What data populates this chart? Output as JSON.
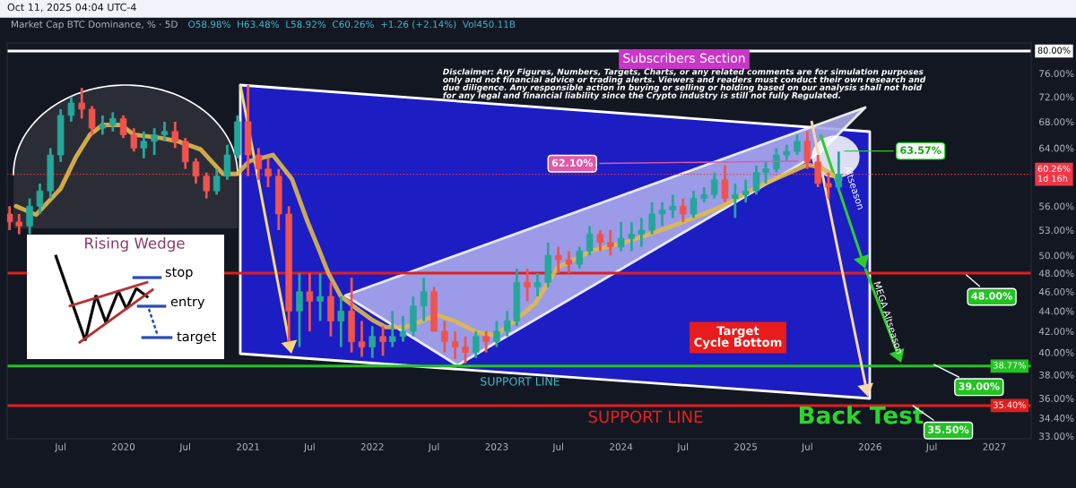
{
  "chart_data": {
    "type": "candlestick",
    "title": "Market Cap BTC Dominance, % · 5D",
    "subtitle": "O58.98%  H63.48%  L58.92%  C60.26%  +1.26 (+2.14%)  Vol450.11B",
    "x": [
      "2019-02",
      "2019-03",
      "2019-04",
      "2019-05",
      "2019-06",
      "2019-07",
      "2019-08",
      "2019-09",
      "2019-10",
      "2019-11",
      "2019-12",
      "2020-01",
      "2020-02",
      "2020-03",
      "2020-04",
      "2020-05",
      "2020-06",
      "2020-07",
      "2020-08",
      "2020-09",
      "2020-10",
      "2020-11",
      "2020-12",
      "2021-01",
      "2021-02",
      "2021-03",
      "2021-04",
      "2021-05",
      "2021-06",
      "2021-07",
      "2021-08",
      "2021-09",
      "2021-10",
      "2021-11",
      "2021-12",
      "2022-01",
      "2022-02",
      "2022-03",
      "2022-04",
      "2022-05",
      "2022-06",
      "2022-07",
      "2022-08",
      "2022-09",
      "2022-10",
      "2022-11",
      "2022-12",
      "2023-01",
      "2023-02",
      "2023-03",
      "2023-04",
      "2023-05",
      "2023-06",
      "2023-07",
      "2023-08",
      "2023-09",
      "2023-10",
      "2023-11",
      "2023-12",
      "2024-01",
      "2024-02",
      "2024-03",
      "2024-04",
      "2024-05",
      "2024-06",
      "2024-07",
      "2024-08",
      "2024-09",
      "2024-10",
      "2024-11",
      "2024-12",
      "2025-01",
      "2025-02",
      "2025-03",
      "2025-04",
      "2025-05",
      "2025-06",
      "2025-07",
      "2025-08",
      "2025-09",
      "2025-10"
    ],
    "ohlc": [
      [
        55,
        56,
        53,
        54
      ],
      [
        54,
        55,
        52.5,
        53.5
      ],
      [
        53.5,
        57,
        52.5,
        56
      ],
      [
        56,
        59,
        55,
        58
      ],
      [
        58,
        64,
        57,
        63
      ],
      [
        63,
        70,
        62,
        69
      ],
      [
        69,
        72,
        68,
        71
      ],
      [
        71,
        73.5,
        68.5,
        70
      ],
      [
        70,
        70.5,
        66,
        67
      ],
      [
        67,
        69,
        66,
        67.5
      ],
      [
        67.5,
        69.5,
        66.5,
        68.5
      ],
      [
        68.5,
        69,
        65.5,
        66
      ],
      [
        66,
        67,
        63.5,
        64
      ],
      [
        64,
        66.5,
        62.5,
        65
      ],
      [
        65,
        67,
        63,
        66
      ],
      [
        66,
        68,
        65,
        66.5
      ],
      [
        66.5,
        68,
        64,
        65
      ],
      [
        65,
        65.5,
        61,
        62
      ],
      [
        62,
        62.5,
        59,
        60
      ],
      [
        60,
        60.5,
        57,
        58
      ],
      [
        58,
        61,
        57.5,
        60
      ],
      [
        60,
        64.5,
        59.5,
        63
      ],
      [
        63,
        69,
        62.5,
        68
      ],
      [
        68,
        74,
        60,
        63
      ],
      [
        63,
        64,
        59.5,
        61
      ],
      [
        61,
        62.5,
        58.5,
        60
      ],
      [
        60,
        61,
        53,
        55
      ],
      [
        55,
        56,
        41,
        44
      ],
      [
        44,
        48,
        40.5,
        46
      ],
      [
        46,
        48,
        42,
        45
      ],
      [
        45,
        48,
        43,
        45.5
      ],
      [
        45.5,
        47,
        41.5,
        43
      ],
      [
        43,
        45.5,
        40.5,
        44
      ],
      [
        44,
        47.5,
        40,
        41
      ],
      [
        41,
        43,
        39.6,
        40.5
      ],
      [
        40.5,
        42.5,
        39.5,
        41.5
      ],
      [
        41.5,
        42.5,
        39.7,
        41
      ],
      [
        41,
        44,
        40.5,
        41.5
      ],
      [
        41.5,
        43.5,
        41,
        42
      ],
      [
        42,
        45.5,
        41.5,
        44.5
      ],
      [
        44.5,
        47.5,
        43,
        46
      ],
      [
        46,
        46.5,
        42,
        42
      ],
      [
        42,
        43,
        40,
        41
      ],
      [
        41,
        42,
        39.4,
        40.5
      ],
      [
        40.5,
        41.5,
        39,
        40
      ],
      [
        40,
        42,
        39.5,
        41.5
      ],
      [
        41.5,
        42,
        40,
        41
      ],
      [
        41,
        43,
        40.5,
        42
      ],
      [
        42,
        44,
        41.5,
        43
      ],
      [
        43,
        48.5,
        42.5,
        47
      ],
      [
        47,
        48.5,
        45,
        46.5
      ],
      [
        46.5,
        48,
        45.5,
        47
      ],
      [
        47,
        51.5,
        46.5,
        50
      ],
      [
        50,
        51,
        48,
        49.5
      ],
      [
        49.5,
        50.5,
        48,
        49
      ],
      [
        49,
        51,
        48.5,
        50.5
      ],
      [
        50.5,
        53.5,
        50,
        52.5
      ],
      [
        52.5,
        53,
        50.5,
        51.5
      ],
      [
        51.5,
        53,
        50,
        51
      ],
      [
        51,
        54,
        50.5,
        52
      ],
      [
        52,
        54,
        50.5,
        52.5
      ],
      [
        52.5,
        54.5,
        51,
        53
      ],
      [
        53,
        56.5,
        52.5,
        55
      ],
      [
        55,
        56.5,
        53.5,
        55.5
      ],
      [
        55.5,
        57.5,
        54.5,
        56
      ],
      [
        56,
        57,
        54,
        55
      ],
      [
        55,
        58,
        54.5,
        57
      ],
      [
        57,
        58.5,
        56.5,
        57.5
      ],
      [
        57.5,
        60.5,
        57,
        59.5
      ],
      [
        59.5,
        61.5,
        56.5,
        57
      ],
      [
        57,
        59,
        54.5,
        57.5
      ],
      [
        57.5,
        59.5,
        56.5,
        58
      ],
      [
        58,
        61.5,
        57.5,
        60.5
      ],
      [
        60.5,
        62,
        59,
        61
      ],
      [
        61,
        64,
        60.5,
        63
      ],
      [
        63,
        64.5,
        62,
        63.5
      ],
      [
        63.5,
        66,
        63,
        65
      ],
      [
        65,
        66.5,
        61,
        62
      ],
      [
        62,
        63,
        58.5,
        59
      ],
      [
        59,
        60.5,
        57,
        58.5
      ],
      [
        58.5,
        63.5,
        58,
        60.26
      ]
    ],
    "colors": [
      "#ef5350",
      "#ef5350",
      "#26a69a",
      "#26a69a",
      "#26a69a",
      "#26a69a",
      "#26a69a",
      "#ef5350",
      "#ef5350",
      "#26a69a",
      "#26a69a",
      "#ef5350",
      "#ef5350",
      "#26a69a",
      "#26a69a",
      "#26a69a",
      "#ef5350",
      "#ef5350",
      "#ef5350",
      "#ef5350",
      "#26a69a",
      "#26a69a",
      "#26a69a",
      "#ef5350",
      "#ef5350",
      "#ef5350",
      "#ef5350",
      "#ef5350",
      "#26a69a",
      "#ef5350",
      "#26a69a",
      "#ef5350",
      "#26a69a",
      "#ef5350",
      "#ef5350",
      "#26a69a",
      "#ef5350",
      "#26a69a",
      "#26a69a",
      "#26a69a",
      "#26a69a",
      "#ef5350",
      "#ef5350",
      "#ef5350",
      "#ef5350",
      "#26a69a",
      "#ef5350",
      "#26a69a",
      "#26a69a",
      "#26a69a",
      "#ef5350",
      "#26a69a",
      "#26a69a",
      "#ef5350",
      "#ef5350",
      "#26a69a",
      "#26a69a",
      "#ef5350",
      "#ef5350",
      "#26a69a",
      "#26a69a",
      "#26a69a",
      "#26a69a",
      "#26a69a",
      "#26a69a",
      "#ef5350",
      "#26a69a",
      "#26a69a",
      "#26a69a",
      "#ef5350",
      "#26a69a",
      "#26a69a",
      "#26a69a",
      "#26a69a",
      "#26a69a",
      "#26a69a",
      "#26a69a",
      "#ef5350",
      "#ef5350",
      "#ef5350",
      "#26a69a"
    ],
    "series": [
      {
        "type": "line",
        "color": "#e0b94a",
        "x": [
          "2019-02-20",
          "2019-04-20",
          "2019-07-01",
          "2019-08-15",
          "2019-09-25",
          "2019-11-01",
          "2019-12-25",
          "2020-02-01",
          "2020-04-20",
          "2020-06-10",
          "2020-08-15",
          "2020-10-20",
          "2020-11-30",
          "2021-01-05",
          "2021-03-15",
          "2021-05-10",
          "2021-06-25",
          "2021-07-25",
          "2021-08-25",
          "2021-10-01",
          "2021-11-10",
          "2022-01-01",
          "2022-02-10",
          "2022-04-10",
          "2022-07-10",
          "2022-08-30",
          "2022-11-05",
          "2022-12-28",
          "2023-02-25",
          "2023-04-25",
          "2023-06-28",
          "2023-10-05",
          "2024-01-10",
          "2024-04-15",
          "2024-07-20",
          "2024-10-25",
          "2025-01-30",
          "2025-05-05",
          "2025-07-01",
          "2025-08-10",
          "2025-10-05"
        ],
        "values": [
          56,
          54.9,
          58.3,
          62.7,
          66,
          67.5,
          67.5,
          66,
          65.5,
          65,
          63.8,
          60.3,
          60.3,
          62.1,
          63,
          59.6,
          54,
          51,
          48,
          45.5,
          44.4,
          43.1,
          42.4,
          42.4,
          43.6,
          43,
          41.9,
          41.6,
          43.1,
          44.8,
          48.6,
          50.5,
          51.5,
          52.8,
          54.3,
          56,
          58.4,
          60.4,
          61.6,
          61.2,
          59.5
        ]
      }
    ],
    "log": true,
    "xlim": [
      "2019-01-25",
      "2027-04-19"
    ],
    "xticks": [
      {
        "value": "2019-07-01",
        "label": "Jul"
      },
      {
        "value": "2020-01-01",
        "label": "2020"
      },
      {
        "value": "2020-07-01",
        "label": "Jul"
      },
      {
        "value": "2021-01-01",
        "label": "2021"
      },
      {
        "value": "2021-07-01",
        "label": "Jul"
      },
      {
        "value": "2022-01-01",
        "label": "2022"
      },
      {
        "value": "2022-07-01",
        "label": "Jul"
      },
      {
        "value": "2023-01-01",
        "label": "2023"
      },
      {
        "value": "2023-07-01",
        "label": "Jul"
      },
      {
        "value": "2024-01-01",
        "label": "2024"
      },
      {
        "value": "2024-07-01",
        "label": "Jul"
      },
      {
        "value": "2025-01-01",
        "label": "2025"
      },
      {
        "value": "2025-07-01",
        "label": "Jul"
      },
      {
        "value": "2026-01-01",
        "label": "2026"
      },
      {
        "value": "2026-07-01",
        "label": "Jul"
      },
      {
        "value": "2027-01-01",
        "label": "2027"
      }
    ],
    "ylim": [
      32.8,
      81.5
    ],
    "yticks": [
      {
        "value": 33,
        "label": "33.00%"
      },
      {
        "value": 34.4,
        "label": "34.40%"
      },
      {
        "value": 36,
        "label": "36.00%"
      },
      {
        "value": 38,
        "label": "38.00%"
      },
      {
        "value": 40,
        "label": "40.00%"
      },
      {
        "value": 42,
        "label": "42.00%"
      },
      {
        "value": 44,
        "label": "44.00%"
      },
      {
        "value": 46,
        "label": "46.00%"
      },
      {
        "value": 48,
        "label": "48.00%"
      },
      {
        "value": 50,
        "label": "50.00%"
      },
      {
        "value": 53,
        "label": "53.00%"
      },
      {
        "value": 56,
        "label": "56.00%"
      },
      {
        "value": 64,
        "label": "64.00%"
      },
      {
        "value": 68,
        "label": "68.00%"
      },
      {
        "value": 72,
        "label": "72.00%"
      },
      {
        "value": 76,
        "label": "76.00%"
      }
    ],
    "ref_lines": [
      {
        "axis": "y",
        "value": 80,
        "label": "80.00%",
        "color": "#ffffff",
        "line_style": "solid"
      },
      {
        "axis": "y",
        "value": 60.26,
        "label": "60.26%\n1d 16h",
        "color": "#f23645",
        "line_style": "dotted"
      },
      {
        "axis": "y",
        "value": 48,
        "label": null,
        "color": "#e01e1e",
        "line_style": "solid"
      },
      {
        "axis": "y",
        "value": 38.77,
        "label": "38.77%",
        "color": "#22c322",
        "line_style": "solid"
      },
      {
        "axis": "y",
        "value": 35.4,
        "label": "35.40%",
        "color": "#e01e1e",
        "line_style": "solid"
      }
    ],
    "annotations": [
      "Oct 11, 2025 04:04 UTC-4",
      "Subscribers Section",
      "Disclaimer: Any Figures, Numbers, Targets, Charts, or any related comments are for simulation purposes\nonly and not financial advice or trading alerts. Viewers and readers must conduct their own research and\ndue diligence. Any responsible action in buying or selling or holding based on our analysis shall not hold\nfor any legal and financial liability since the Crypto industry is still not fully Regulated.",
      "Rising Wedge",
      "stop",
      "entry",
      "target",
      "Target\nCycle Bottom",
      "SUPPORT LINE",
      "SUPPORT LINE",
      "Back Test",
      "Altseason",
      "MEGA Altseason",
      {
        "text": "62.10%",
        "x": "2025-06-10",
        "y": 62.1
      },
      {
        "text": "63.57%",
        "x": "2025-10-11",
        "y": 63.57
      },
      {
        "text": "48.00%",
        "x": "2026-10-05",
        "y": 48
      },
      {
        "text": "39.00%",
        "x": "2026-07-01",
        "y": 39
      },
      {
        "text": "35.50%",
        "x": "2026-05-01",
        "y": 35.5
      }
    ]
  }
}
